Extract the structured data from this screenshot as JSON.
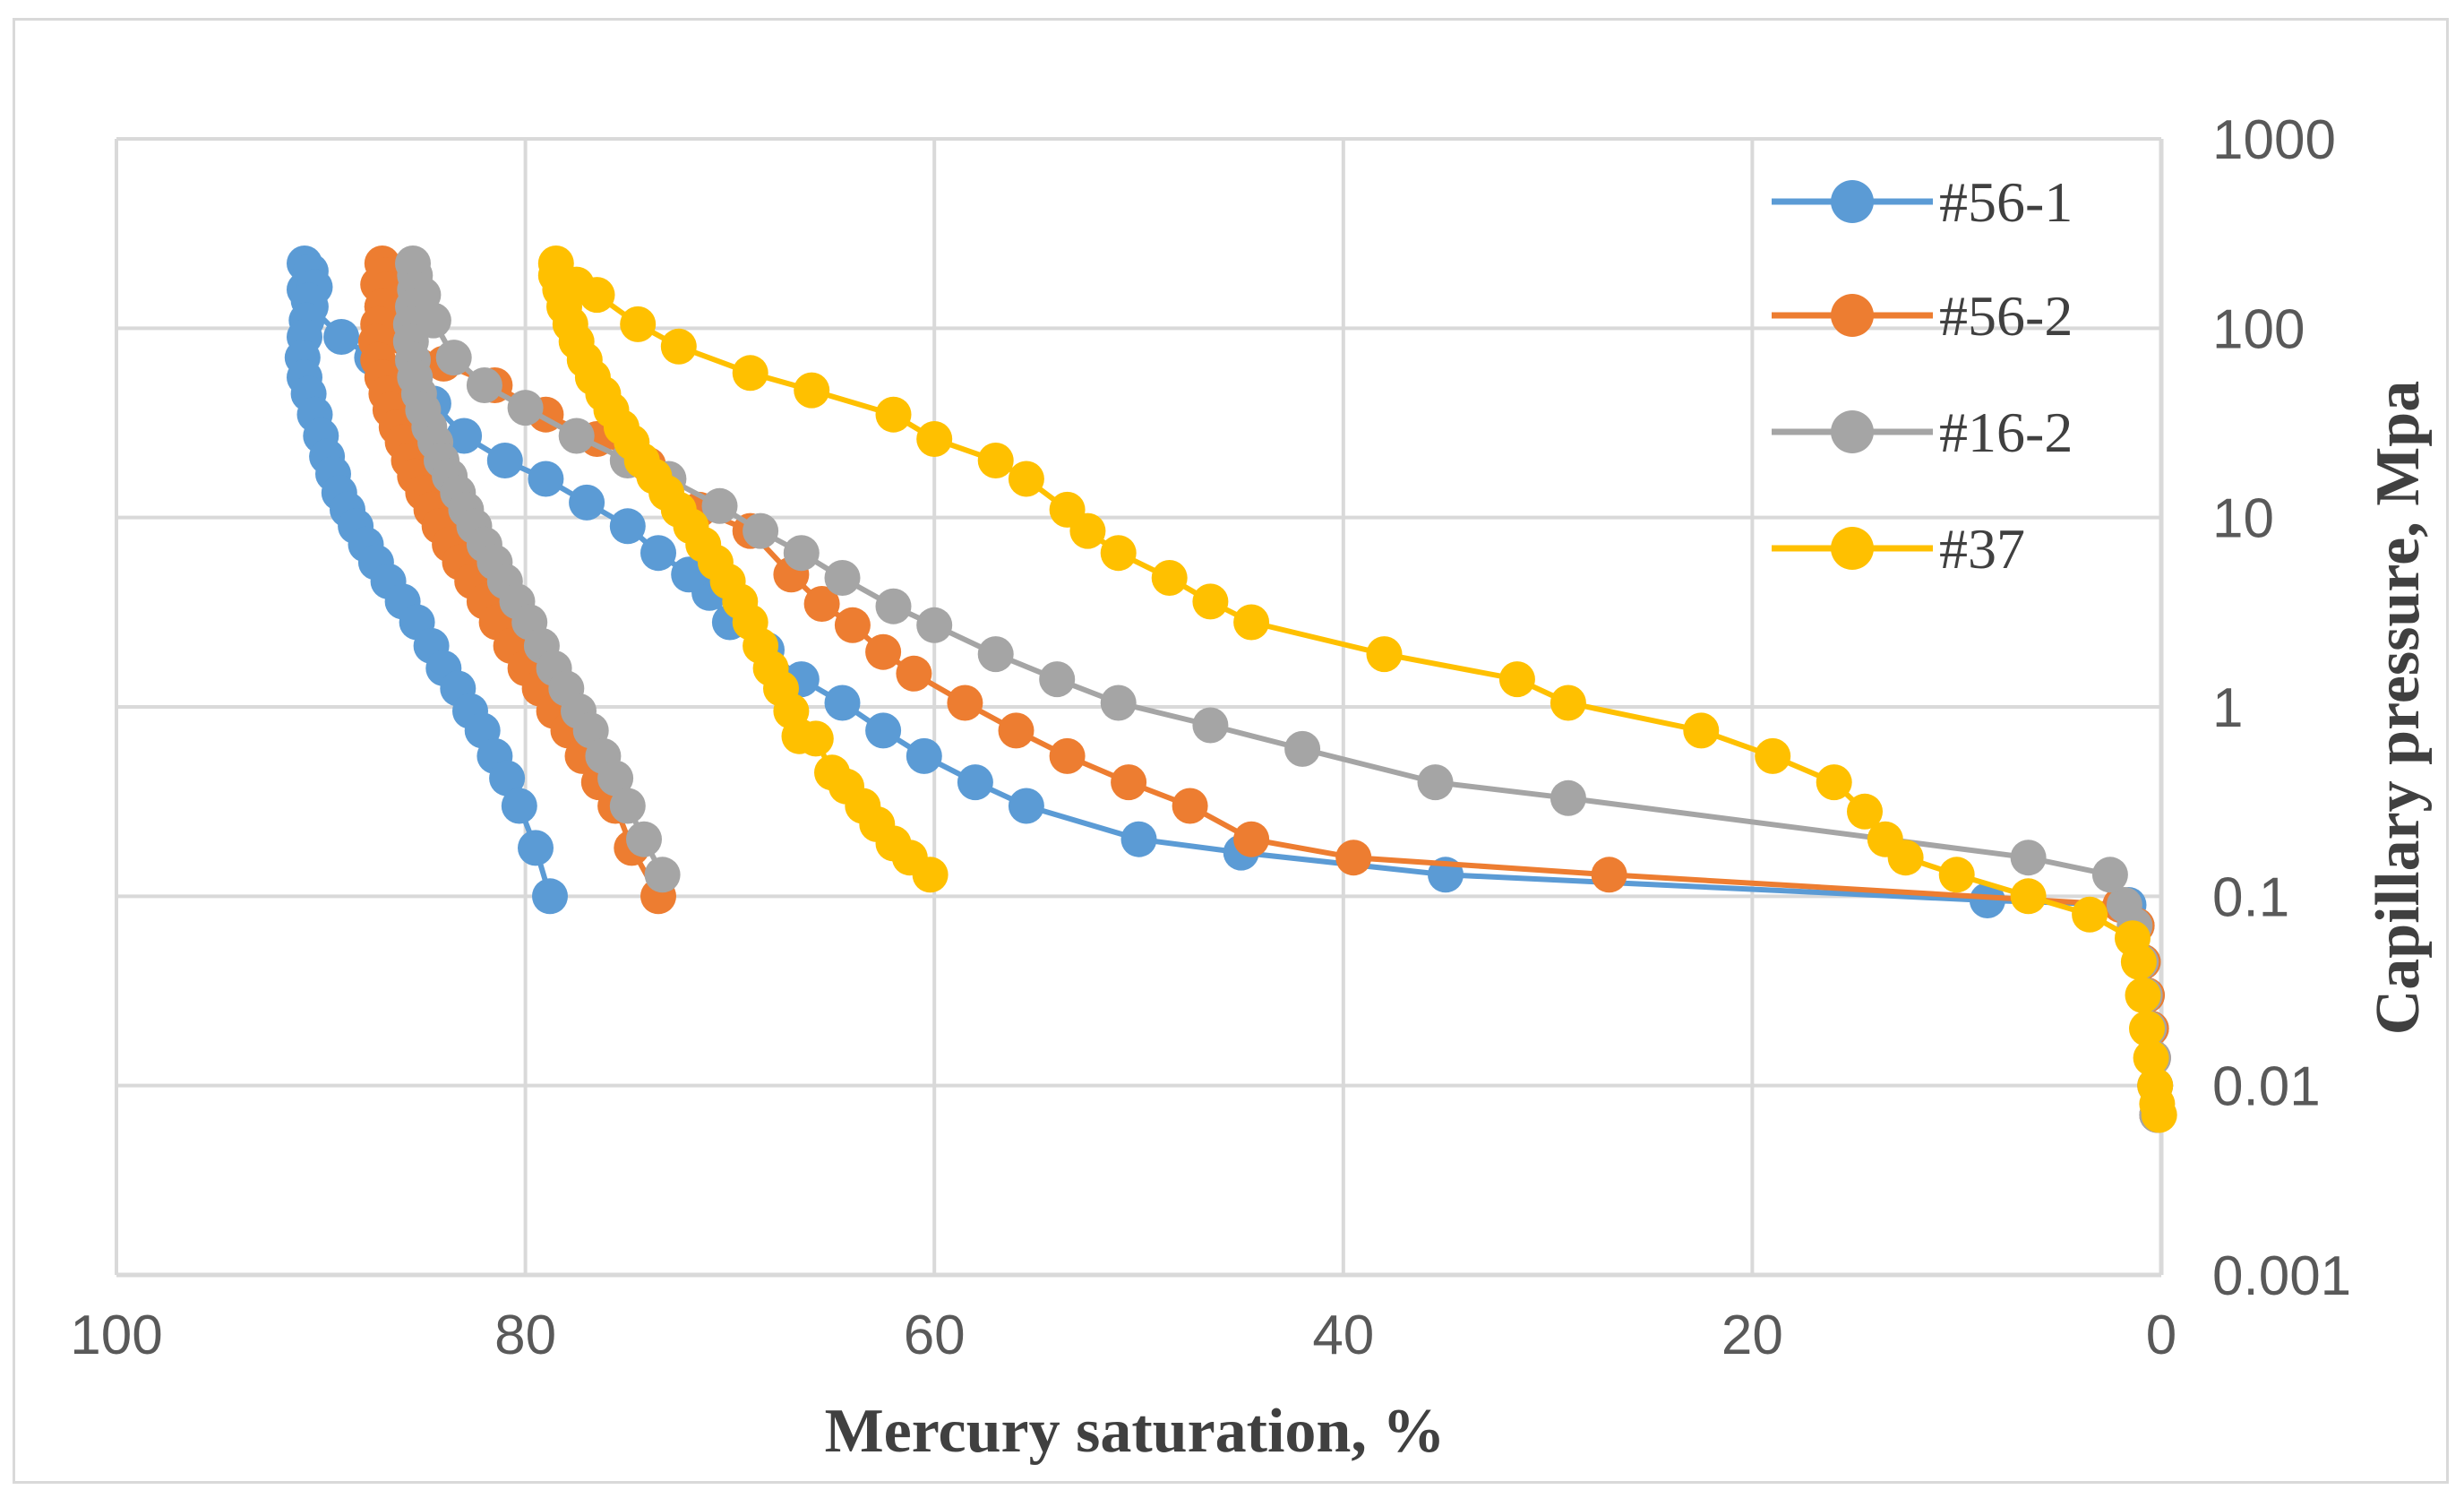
{
  "chart_data": {
    "type": "scatter",
    "title": "",
    "xlabel": "Mercury saturation, %",
    "ylabel": "Capillary pressure, Mpa",
    "xlim": [
      100,
      0
    ],
    "x_reversed": true,
    "ylim": [
      0.001,
      1000
    ],
    "y_scale": "log",
    "grid": true,
    "legend_position": "top-right",
    "x_ticks": [
      "100",
      "80",
      "60",
      "40",
      "20",
      "0"
    ],
    "y_ticks": [
      "1000",
      "100",
      "10",
      "1",
      "0.1",
      "0.01",
      "0.001"
    ],
    "series": [
      {
        "name": "#56-1",
        "color": "#5b9bd5",
        "points": [
          [
            0.2,
            0.007
          ],
          [
            0.3,
            0.01
          ],
          [
            0.4,
            0.014
          ],
          [
            0.5,
            0.02
          ],
          [
            0.7,
            0.03
          ],
          [
            0.9,
            0.045
          ],
          [
            1.2,
            0.07
          ],
          [
            1.6,
            0.09
          ],
          [
            8.5,
            0.095
          ],
          [
            35,
            0.13
          ],
          [
            45,
            0.17
          ],
          [
            50,
            0.2
          ],
          [
            55.5,
            0.3
          ],
          [
            58,
            0.4
          ],
          [
            60.5,
            0.55
          ],
          [
            62.5,
            0.75
          ],
          [
            64.5,
            1.05
          ],
          [
            66.5,
            1.4
          ],
          [
            68.2,
            2.0
          ],
          [
            70,
            2.8
          ],
          [
            71,
            4.0
          ],
          [
            72,
            5.0
          ],
          [
            73.5,
            6.5
          ],
          [
            75,
            9.0
          ],
          [
            77,
            12
          ],
          [
            79,
            16
          ],
          [
            81,
            20
          ],
          [
            83,
            27
          ],
          [
            84.5,
            40
          ],
          [
            86,
            55
          ],
          [
            87.5,
            70
          ],
          [
            89,
            90
          ],
          [
            90.5,
            130
          ],
          [
            90.8,
            160
          ],
          [
            90.8,
            220
          ],
          [
            90.5,
            200
          ],
          [
            90.3,
            165
          ],
          [
            90.6,
            140
          ],
          [
            90.7,
            110
          ],
          [
            90.8,
            90
          ],
          [
            90.9,
            70
          ],
          [
            90.8,
            55
          ],
          [
            90.6,
            45
          ],
          [
            90.3,
            35
          ],
          [
            90,
            27
          ],
          [
            89.7,
            21
          ],
          [
            89.4,
            17
          ],
          [
            89.1,
            13.5
          ],
          [
            88.7,
            11
          ],
          [
            88.3,
            9
          ],
          [
            87.8,
            7.2
          ],
          [
            87.3,
            5.8
          ],
          [
            86.7,
            4.6
          ],
          [
            86,
            3.6
          ],
          [
            85.3,
            2.8
          ],
          [
            84.6,
            2.1
          ],
          [
            84,
            1.6
          ],
          [
            83.3,
            1.25
          ],
          [
            82.7,
            0.95
          ],
          [
            82.1,
            0.75
          ],
          [
            81.5,
            0.55
          ],
          [
            80.9,
            0.42
          ],
          [
            80.3,
            0.3
          ],
          [
            79.5,
            0.18
          ],
          [
            78.8,
            0.1
          ]
        ]
      },
      {
        "name": "#56-2",
        "color": "#ed7d31",
        "points": [
          [
            0.2,
            0.007
          ],
          [
            0.3,
            0.01
          ],
          [
            0.4,
            0.014
          ],
          [
            0.5,
            0.02
          ],
          [
            0.7,
            0.03
          ],
          [
            0.9,
            0.045
          ],
          [
            1.2,
            0.07
          ],
          [
            2.0,
            0.09
          ],
          [
            27,
            0.13
          ],
          [
            39.5,
            0.16
          ],
          [
            44.5,
            0.2
          ],
          [
            47.5,
            0.3
          ],
          [
            50.5,
            0.4
          ],
          [
            53.5,
            0.55
          ],
          [
            56,
            0.75
          ],
          [
            58.5,
            1.05
          ],
          [
            61,
            1.5
          ],
          [
            62.5,
            1.95
          ],
          [
            64,
            2.7
          ],
          [
            65.5,
            3.5
          ],
          [
            67,
            5.0
          ],
          [
            69,
            8.5
          ],
          [
            71.5,
            11
          ],
          [
            74,
            19
          ],
          [
            76.5,
            26
          ],
          [
            79,
            35
          ],
          [
            81.5,
            50
          ],
          [
            84,
            65
          ],
          [
            86,
            90
          ],
          [
            87,
            130
          ],
          [
            87.2,
            170
          ],
          [
            87,
            220
          ],
          [
            86.9,
            190
          ],
          [
            86.8,
            160
          ],
          [
            87,
            130
          ],
          [
            87.2,
            105
          ],
          [
            87.3,
            85
          ],
          [
            87.2,
            68
          ],
          [
            87,
            55
          ],
          [
            86.8,
            45
          ],
          [
            86.6,
            37
          ],
          [
            86.3,
            30
          ],
          [
            86,
            25
          ],
          [
            85.7,
            20
          ],
          [
            85.4,
            16.5
          ],
          [
            85,
            13.5
          ],
          [
            84.6,
            11
          ],
          [
            84.2,
            9
          ],
          [
            83.7,
            7.2
          ],
          [
            83.2,
            5.8
          ],
          [
            82.6,
            4.6
          ],
          [
            82,
            3.6
          ],
          [
            81.4,
            2.8
          ],
          [
            80.7,
            2.1
          ],
          [
            80,
            1.6
          ],
          [
            79.3,
            1.25
          ],
          [
            78.6,
            0.95
          ],
          [
            77.9,
            0.75
          ],
          [
            77.2,
            0.55
          ],
          [
            76.4,
            0.4
          ],
          [
            75.6,
            0.3
          ],
          [
            74.8,
            0.18
          ],
          [
            73.5,
            0.1
          ]
        ]
      },
      {
        "name": "#16-2",
        "color": "#a5a5a5",
        "points": [
          [
            0.2,
            0.007
          ],
          [
            0.3,
            0.01
          ],
          [
            0.4,
            0.014
          ],
          [
            0.6,
            0.02
          ],
          [
            0.8,
            0.03
          ],
          [
            1.0,
            0.045
          ],
          [
            1.3,
            0.07
          ],
          [
            1.8,
            0.09
          ],
          [
            2.5,
            0.13
          ],
          [
            6.5,
            0.16
          ],
          [
            29,
            0.33
          ],
          [
            35.5,
            0.4
          ],
          [
            42,
            0.6
          ],
          [
            46.5,
            0.8
          ],
          [
            51,
            1.05
          ],
          [
            54,
            1.4
          ],
          [
            57,
            1.9
          ],
          [
            60,
            2.7
          ],
          [
            62,
            3.4
          ],
          [
            64.5,
            4.8
          ],
          [
            66.5,
            6.5
          ],
          [
            68.5,
            8.5
          ],
          [
            70.5,
            11.5
          ],
          [
            73,
            16
          ],
          [
            75,
            20
          ],
          [
            77.5,
            27
          ],
          [
            80,
            38
          ],
          [
            82,
            50
          ],
          [
            83.5,
            70
          ],
          [
            84.5,
            110
          ],
          [
            85,
            150
          ],
          [
            85.5,
            220
          ],
          [
            85.4,
            190
          ],
          [
            85.4,
            160
          ],
          [
            85.5,
            130
          ],
          [
            85.6,
            105
          ],
          [
            85.6,
            85
          ],
          [
            85.5,
            68
          ],
          [
            85.4,
            55
          ],
          [
            85.2,
            45
          ],
          [
            85,
            37
          ],
          [
            84.7,
            30
          ],
          [
            84.4,
            25
          ],
          [
            84.1,
            20
          ],
          [
            83.7,
            16.5
          ],
          [
            83.3,
            13.5
          ],
          [
            82.9,
            11
          ],
          [
            82.5,
            9
          ],
          [
            82,
            7.2
          ],
          [
            81.5,
            5.8
          ],
          [
            81,
            4.6
          ],
          [
            80.4,
            3.6
          ],
          [
            79.8,
            2.8
          ],
          [
            79.2,
            2.1
          ],
          [
            78.6,
            1.6
          ],
          [
            78,
            1.25
          ],
          [
            77.4,
            0.95
          ],
          [
            76.8,
            0.75
          ],
          [
            76.2,
            0.55
          ],
          [
            75.6,
            0.42
          ],
          [
            75,
            0.3
          ],
          [
            74.2,
            0.2
          ],
          [
            73.3,
            0.13
          ]
        ]
      },
      {
        "name": "#37",
        "color": "#ffc000",
        "points": [
          [
            0.1,
            0.007
          ],
          [
            0.2,
            0.008
          ],
          [
            0.3,
            0.01
          ],
          [
            0.5,
            0.014
          ],
          [
            0.7,
            0.02
          ],
          [
            0.9,
            0.03
          ],
          [
            1.1,
            0.045
          ],
          [
            1.4,
            0.06
          ],
          [
            3.5,
            0.08
          ],
          [
            6.5,
            0.1
          ],
          [
            10,
            0.13
          ],
          [
            12.5,
            0.16
          ],
          [
            13.5,
            0.2
          ],
          [
            14.5,
            0.28
          ],
          [
            16,
            0.4
          ],
          [
            19,
            0.55
          ],
          [
            22.5,
            0.75
          ],
          [
            29,
            1.05
          ],
          [
            31.5,
            1.4
          ],
          [
            38,
            1.9
          ],
          [
            44.5,
            2.8
          ],
          [
            46.5,
            3.6
          ],
          [
            48.5,
            4.8
          ],
          [
            51,
            6.5
          ],
          [
            52.5,
            8.5
          ],
          [
            53.5,
            11
          ],
          [
            55.5,
            16
          ],
          [
            57,
            20
          ],
          [
            60,
            26
          ],
          [
            62,
            35
          ],
          [
            66,
            47
          ],
          [
            69,
            58
          ],
          [
            72.5,
            80
          ],
          [
            74.5,
            105
          ],
          [
            76.5,
            150
          ],
          [
            77.5,
            170
          ],
          [
            78.5,
            220
          ],
          [
            78.5,
            190
          ],
          [
            78.3,
            160
          ],
          [
            78.1,
            130
          ],
          [
            77.8,
            105
          ],
          [
            77.5,
            85
          ],
          [
            77.1,
            68
          ],
          [
            76.7,
            55
          ],
          [
            76.2,
            45
          ],
          [
            75.8,
            37
          ],
          [
            75.3,
            30
          ],
          [
            74.8,
            25
          ],
          [
            74.3,
            20
          ],
          [
            73.7,
            16.5
          ],
          [
            73.1,
            13.5
          ],
          [
            72.5,
            11
          ],
          [
            71.9,
            9
          ],
          [
            71.3,
            7.2
          ],
          [
            70.7,
            5.8
          ],
          [
            70.1,
            4.6
          ],
          [
            69.5,
            3.6
          ],
          [
            69,
            2.8
          ],
          [
            68.5,
            2.1
          ],
          [
            68,
            1.6
          ],
          [
            67.5,
            1.25
          ],
          [
            67,
            0.95
          ],
          [
            66.6,
            0.7
          ],
          [
            65.8,
            0.68
          ],
          [
            65,
            0.45
          ],
          [
            64.3,
            0.38
          ],
          [
            63.5,
            0.3
          ],
          [
            62.8,
            0.24
          ],
          [
            62,
            0.19
          ],
          [
            61.2,
            0.16
          ],
          [
            60.2,
            0.13
          ]
        ]
      }
    ]
  }
}
